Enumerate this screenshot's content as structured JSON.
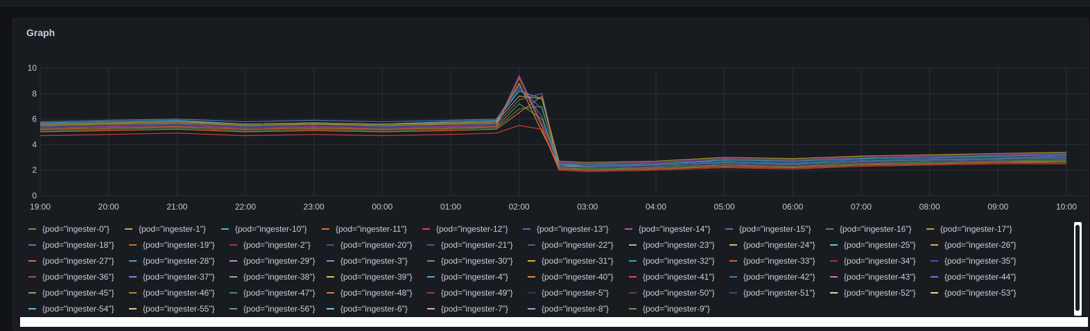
{
  "panel": {
    "title": "Graph"
  },
  "chart_data": {
    "type": "line",
    "title": "Graph",
    "xlabel": "",
    "ylabel": "",
    "ylim": [
      0,
      10
    ],
    "yticks": [
      "0",
      "2",
      "4",
      "6",
      "8",
      "10"
    ],
    "xticks": [
      "19:00",
      "20:00",
      "21:00",
      "22:00",
      "23:00",
      "00:00",
      "01:00",
      "02:00",
      "03:00",
      "04:00",
      "05:00",
      "06:00",
      "07:00",
      "08:00",
      "09:00",
      "10:00"
    ],
    "grid": true,
    "legend_position": "bottom",
    "x": [
      "19:00",
      "20:00",
      "21:00",
      "22:00",
      "23:00",
      "00:00",
      "01:00",
      "01:40",
      "02:00",
      "02:20",
      "02:35",
      "03:00",
      "04:00",
      "05:00",
      "06:00",
      "07:00",
      "08:00",
      "09:00",
      "10:00"
    ],
    "series": [
      {
        "name": "{pod=\"ingester-0\"}",
        "values": [
          5.2,
          5.3,
          5.4,
          5.2,
          5.3,
          5.2,
          5.3,
          5.4,
          7.2,
          6.0,
          2.2,
          2.1,
          2.2,
          2.4,
          2.3,
          2.5,
          2.6,
          2.7,
          2.8
        ]
      },
      {
        "name": "{pod=\"ingester-1\"}",
        "values": [
          5.5,
          5.6,
          5.7,
          5.5,
          5.6,
          5.5,
          5.6,
          5.7,
          8.8,
          5.0,
          2.3,
          2.3,
          2.4,
          2.6,
          2.5,
          2.7,
          2.8,
          2.9,
          3.0
        ]
      },
      {
        "name": "{pod=\"ingester-10\"}",
        "values": [
          5.7,
          5.8,
          5.9,
          5.6,
          5.7,
          5.6,
          5.8,
          5.9,
          8.2,
          7.6,
          2.5,
          2.4,
          2.5,
          2.8,
          2.7,
          2.9,
          3.0,
          3.1,
          3.2
        ]
      },
      {
        "name": "{pod=\"ingester-11\"}",
        "values": [
          5.0,
          5.1,
          5.2,
          5.0,
          5.1,
          5.0,
          5.1,
          5.2,
          6.5,
          7.8,
          2.1,
          2.0,
          2.1,
          2.3,
          2.2,
          2.4,
          2.5,
          2.6,
          2.7
        ]
      },
      {
        "name": "{pod=\"ingester-12\"}",
        "values": [
          4.7,
          4.8,
          4.9,
          4.7,
          4.8,
          4.7,
          4.8,
          4.9,
          5.5,
          5.2,
          2.0,
          1.9,
          2.0,
          2.2,
          2.1,
          2.3,
          2.4,
          2.5,
          2.5
        ]
      },
      {
        "name": "{pod=\"ingester-13\"}",
        "values": [
          5.6,
          5.7,
          5.8,
          5.6,
          5.7,
          5.6,
          5.7,
          5.8,
          8.4,
          6.8,
          2.4,
          2.4,
          2.5,
          2.7,
          2.6,
          2.8,
          2.9,
          3.0,
          3.1
        ]
      },
      {
        "name": "{pod=\"ingester-14\"}",
        "values": [
          5.3,
          5.4,
          5.5,
          5.3,
          5.4,
          5.3,
          5.4,
          5.5,
          9.4,
          5.6,
          2.6,
          2.5,
          2.6,
          2.9,
          2.8,
          3.0,
          3.1,
          3.2,
          3.3
        ]
      },
      {
        "name": "{pod=\"ingester-15\"}",
        "values": [
          5.4,
          5.5,
          5.6,
          5.4,
          5.5,
          5.4,
          5.5,
          5.6,
          7.5,
          8.0,
          2.3,
          2.2,
          2.3,
          2.5,
          2.4,
          2.6,
          2.7,
          2.8,
          2.9
        ]
      },
      {
        "name": "{pod=\"ingester-16\"}",
        "values": [
          5.1,
          5.2,
          5.3,
          5.1,
          5.2,
          5.1,
          5.2,
          5.3,
          6.8,
          7.0,
          2.2,
          2.1,
          2.2,
          2.4,
          2.3,
          2.5,
          2.6,
          2.7,
          2.7
        ]
      },
      {
        "name": "{pod=\"ingester-17\"}",
        "values": [
          5.6,
          5.7,
          5.8,
          5.6,
          5.7,
          5.6,
          5.7,
          5.8,
          7.8,
          7.6,
          2.7,
          2.6,
          2.7,
          3.0,
          2.9,
          3.1,
          3.2,
          3.3,
          3.4
        ]
      },
      {
        "name": "{pod=\"ingester-18\"}",
        "values": [
          5.8,
          5.9,
          6.0,
          5.8,
          5.9,
          5.8,
          5.9,
          6.0,
          8.6,
          6.2,
          2.4,
          2.3,
          2.4,
          2.6,
          2.5,
          2.7,
          2.8,
          2.9,
          3.0
        ]
      },
      {
        "name": "{pod=\"ingester-19\"}",
        "values": [
          5.2,
          5.3,
          5.4,
          5.2,
          5.3,
          5.2,
          5.3,
          5.4,
          9.2,
          5.4,
          2.1,
          2.0,
          2.1,
          2.3,
          2.2,
          2.4,
          2.5,
          2.6,
          2.6
        ]
      }
    ]
  },
  "legend": [
    "{pod=\"ingester-0\"}",
    "{pod=\"ingester-1\"}",
    "{pod=\"ingester-10\"}",
    "{pod=\"ingester-11\"}",
    "{pod=\"ingester-12\"}",
    "{pod=\"ingester-13\"}",
    "{pod=\"ingester-14\"}",
    "{pod=\"ingester-15\"}",
    "{pod=\"ingester-16\"}",
    "{pod=\"ingester-17\"}",
    "{pod=\"ingester-18\"}",
    "{pod=\"ingester-19\"}",
    "{pod=\"ingester-2\"}",
    "{pod=\"ingester-20\"}",
    "{pod=\"ingester-21\"}",
    "{pod=\"ingester-22\"}",
    "{pod=\"ingester-23\"}",
    "{pod=\"ingester-24\"}",
    "{pod=\"ingester-25\"}",
    "{pod=\"ingester-26\"}",
    "{pod=\"ingester-27\"}",
    "{pod=\"ingester-28\"}",
    "{pod=\"ingester-29\"}",
    "{pod=\"ingester-3\"}",
    "{pod=\"ingester-30\"}",
    "{pod=\"ingester-31\"}",
    "{pod=\"ingester-32\"}",
    "{pod=\"ingester-33\"}",
    "{pod=\"ingester-34\"}",
    "{pod=\"ingester-35\"}",
    "{pod=\"ingester-36\"}",
    "{pod=\"ingester-37\"}",
    "{pod=\"ingester-38\"}",
    "{pod=\"ingester-39\"}",
    "{pod=\"ingester-4\"}",
    "{pod=\"ingester-40\"}",
    "{pod=\"ingester-41\"}",
    "{pod=\"ingester-42\"}",
    "{pod=\"ingester-43\"}",
    "{pod=\"ingester-44\"}",
    "{pod=\"ingester-45\"}",
    "{pod=\"ingester-46\"}",
    "{pod=\"ingester-47\"}",
    "{pod=\"ingester-48\"}",
    "{pod=\"ingester-49\"}",
    "{pod=\"ingester-5\"}",
    "{pod=\"ingester-50\"}",
    "{pod=\"ingester-51\"}",
    "{pod=\"ingester-52\"}",
    "{pod=\"ingester-53\"}",
    "{pod=\"ingester-54\"}",
    "{pod=\"ingester-55\"}",
    "{pod=\"ingester-56\"}",
    "{pod=\"ingester-6\"}",
    "{pod=\"ingester-7\"}",
    "{pod=\"ingester-8\"}",
    "{pod=\"ingester-9\"}"
  ],
  "legend_colors": [
    "#5f9e46",
    "#d9a23a",
    "#4fb6d8",
    "#e0703a",
    "#d9453f",
    "#3f7fc6",
    "#b84fb8",
    "#6a6ab8",
    "#5c8c4a",
    "#c2a23a",
    "#4a86c2",
    "#d46a2c",
    "#a33d3d",
    "#3a5a8a",
    "#8a3a8a",
    "#5a5a8a",
    "#9bc48a",
    "#e2b56a",
    "#5ec8d8",
    "#e8a860",
    "#e06a5a",
    "#5a9ad8",
    "#c88ae0",
    "#8a8ae0",
    "#5aa85a",
    "#e0b030",
    "#3aa8b8",
    "#d8602c",
    "#b83030",
    "#3a5ab8",
    "#a84a7a",
    "#7a8ae8",
    "#8ab87a",
    "#e0c050",
    "#4ab0e0",
    "#e08a4a",
    "#e05050",
    "#4a7ab8",
    "#d070d0",
    "#8a6ae0",
    "#6ab86a",
    "#c08030",
    "#4a8a6a",
    "#d07a4a",
    "#a04040",
    "#2a3a5a",
    "#6a3a5a",
    "#3a4a7a",
    "#c8e0a0",
    "#f0d090",
    "#60c0e8",
    "#e8c890",
    "#6a9aa8",
    "#80c8e8",
    "#f0a8a8",
    "#b0a0d0",
    "#6a9a4a"
  ]
}
